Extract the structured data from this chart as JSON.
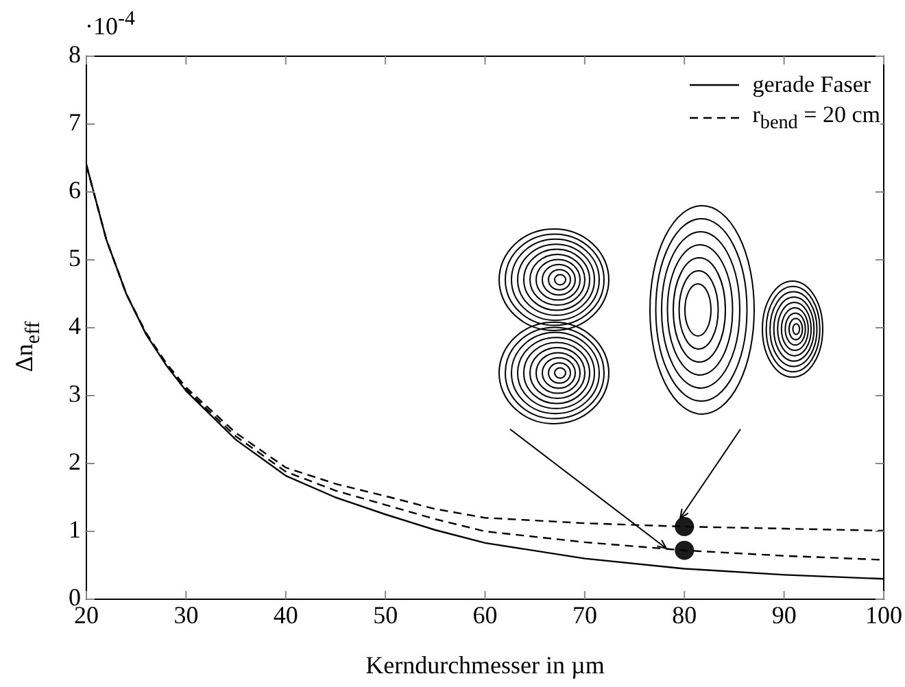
{
  "chart_data": {
    "type": "line",
    "xlabel": "Kerndurchmesser in µm",
    "ylabel": "Δn$_{eff}$",
    "xlim": [
      20,
      100
    ],
    "xticks": [
      20,
      30,
      40,
      50,
      60,
      70,
      80,
      90,
      100
    ],
    "ylim": [
      0,
      8
    ],
    "yticks": [
      0,
      1,
      2,
      3,
      4,
      5,
      6,
      7,
      8
    ],
    "grid": false,
    "legend": "top right",
    "marker": "none",
    "annotations": [
      "·10$^{-4}$"
    ],
    "series": [
      {
        "name": "gerade Faser",
        "color": "#000000",
        "line_style": "solid",
        "x": [
          20,
          22,
          24,
          26,
          28,
          30,
          35,
          40,
          45,
          50,
          55,
          60,
          70,
          80,
          90,
          100
        ],
        "values": [
          6.4,
          5.3,
          4.5,
          3.9,
          3.45,
          3.07,
          2.35,
          1.82,
          1.5,
          1.25,
          1.02,
          0.83,
          0.6,
          0.45,
          0.36,
          0.3
        ]
      },
      {
        "name": "r$_{bend}$ = 20 cm",
        "color": "#000000",
        "line_style": "dashed",
        "x": [
          20,
          22,
          24,
          26,
          28,
          30,
          35,
          40,
          45,
          50,
          55,
          60,
          70,
          80,
          90,
          100
        ],
        "values": [
          6.4,
          5.3,
          4.5,
          3.92,
          3.48,
          3.12,
          2.45,
          1.94,
          1.7,
          1.52,
          1.33,
          1.2,
          1.12,
          1.07,
          1.04,
          1.01
        ]
      },
      {
        "color": "#000000",
        "line_style": "dashed",
        "x": [
          20,
          22,
          24,
          26,
          28,
          30,
          35,
          40,
          45,
          50,
          55,
          60,
          70,
          80,
          90,
          100
        ],
        "values": [
          6.4,
          5.3,
          4.5,
          3.91,
          3.46,
          3.09,
          2.4,
          1.88,
          1.6,
          1.39,
          1.18,
          1.0,
          0.84,
          0.72,
          0.64,
          0.58
        ]
      },
      {
        "type": "scatter",
        "color": "#1a1a1a",
        "marker": "circle",
        "x": [
          80,
          80
        ],
        "values": [
          1.07,
          0.72
        ]
      }
    ]
  }
}
